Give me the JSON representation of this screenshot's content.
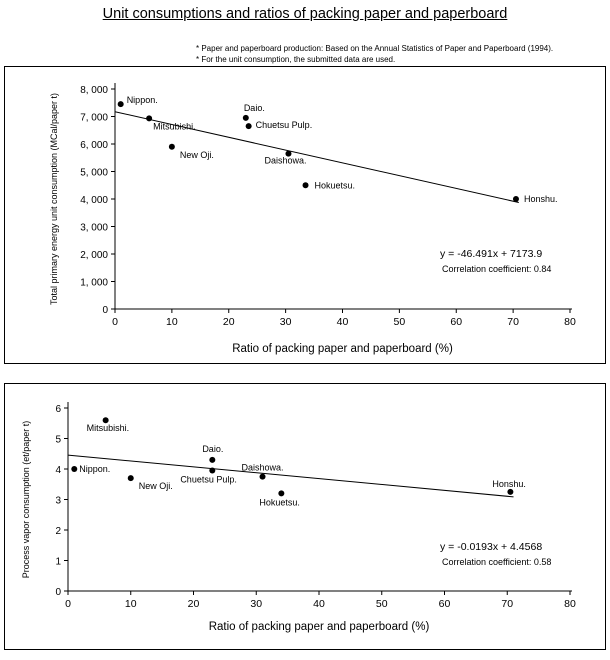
{
  "page_title": "Unit consumptions and ratios of packing paper and paperboard",
  "notes": [
    "* Paper and paperboard production: Based on the Annual Statistics of Paper and Paperboard (1994).",
    "* For the unit consumption, the submitted data are used."
  ],
  "chart_data": [
    {
      "type": "scatter",
      "title": "",
      "xlabel": "Ratio of packing paper and paperboard (%)",
      "ylabel": "Total primary energy unit consumption (MCal/paper t)",
      "xlim": [
        0,
        80
      ],
      "ylim": [
        0,
        8000
      ],
      "xticks": [
        "0",
        "10",
        "20",
        "30",
        "40",
        "50",
        "60",
        "70",
        "80"
      ],
      "yticks": [
        "0",
        "1, 000",
        "2, 000",
        "3, 000",
        "4, 000",
        "5, 000",
        "6, 000",
        "7, 000",
        "8, 000"
      ],
      "points": [
        {
          "label": "Nippon.",
          "x": 1,
          "y": 7450
        },
        {
          "label": "Mitsubishi.",
          "x": 6,
          "y": 6930
        },
        {
          "label": "New Oji.",
          "x": 10,
          "y": 5900
        },
        {
          "label": "Daio.",
          "x": 23,
          "y": 6950
        },
        {
          "label": "Chuetsu Pulp.",
          "x": 23.5,
          "y": 6650
        },
        {
          "label": "Daishowa.",
          "x": 30.5,
          "y": 5650
        },
        {
          "label": "Hokuetsu.",
          "x": 33.5,
          "y": 4500
        },
        {
          "label": "Honshu.",
          "x": 70.5,
          "y": 4000
        }
      ],
      "trendline": {
        "slope": -46.491,
        "intercept": 7173.9,
        "x_range": [
          0,
          71
        ]
      },
      "equation": "y = -46.491x + 7173.9",
      "correlation": "Correlation coefficient: 0.84"
    },
    {
      "type": "scatter",
      "title": "",
      "xlabel": "Ratio of packing paper and paperboard (%)",
      "ylabel": "Process vapor consumption (et/paper t)",
      "xlim": [
        0,
        80
      ],
      "ylim": [
        0,
        6
      ],
      "xticks": [
        "0",
        "10",
        "20",
        "30",
        "40",
        "50",
        "60",
        "70",
        "80"
      ],
      "yticks": [
        "0",
        "1",
        "2",
        "3",
        "4",
        "5",
        "6"
      ],
      "points": [
        {
          "label": "Mitsubishi.",
          "x": 6,
          "y": 5.6
        },
        {
          "label": "Nippon.",
          "x": 1,
          "y": 4.0
        },
        {
          "label": "New Oji.",
          "x": 10,
          "y": 3.7
        },
        {
          "label": "Daio.",
          "x": 23,
          "y": 4.3
        },
        {
          "label": "Chuetsu Pulp.",
          "x": 23,
          "y": 3.95
        },
        {
          "label": "Daishowa.",
          "x": 31,
          "y": 3.75
        },
        {
          "label": "Hokuetsu.",
          "x": 34,
          "y": 3.2
        },
        {
          "label": "Honshu.",
          "x": 70.5,
          "y": 3.25
        }
      ],
      "trendline": {
        "slope": -0.0193,
        "intercept": 4.4568,
        "x_range": [
          0,
          71
        ]
      },
      "equation": "y = -0.0193x + 4.4568",
      "correlation": "Correlation coefficient: 0.58"
    }
  ]
}
